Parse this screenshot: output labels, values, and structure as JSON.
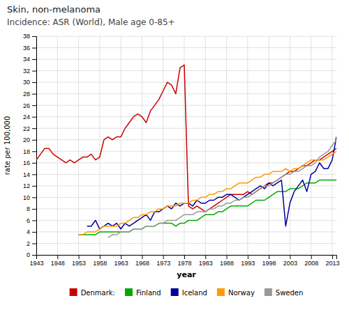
{
  "chart_data": {
    "type": "line",
    "title": "Skin, non-melanoma",
    "subtitle": "Incidence: ASR (World), Male age 0-85+",
    "x_label": "year",
    "y_label": "rate per 100,000",
    "x": [
      1943,
      1944,
      1945,
      1946,
      1947,
      1948,
      1949,
      1950,
      1951,
      1952,
      1953,
      1954,
      1955,
      1956,
      1957,
      1958,
      1959,
      1960,
      1961,
      1962,
      1963,
      1964,
      1965,
      1966,
      1967,
      1968,
      1969,
      1970,
      1971,
      1972,
      1973,
      1974,
      1975,
      1976,
      1977,
      1978,
      1979,
      1980,
      1981,
      1982,
      1983,
      1984,
      1985,
      1986,
      1987,
      1988,
      1989,
      1990,
      1991,
      1992,
      1993,
      1994,
      1995,
      1996,
      1997,
      1998,
      1999,
      2000,
      2001,
      2002,
      2003,
      2004,
      2005,
      2006,
      2007,
      2008,
      2009,
      2010,
      2011,
      2012,
      2013,
      2014
    ],
    "series": [
      {
        "name": "Denmark:",
        "color": "#cc0000",
        "values": [
          16.5,
          17.5,
          18.5,
          18.5,
          17.5,
          17.0,
          16.5,
          16.0,
          16.5,
          16.0,
          16.5,
          17.0,
          17.0,
          17.5,
          16.5,
          17.0,
          20.0,
          20.5,
          20.0,
          20.5,
          20.5,
          22.0,
          23.0,
          24.0,
          24.5,
          24.0,
          23.0,
          25.0,
          26.0,
          27.0,
          28.5,
          30.0,
          29.5,
          28.0,
          32.5,
          33.0,
          8.5,
          8.0,
          8.5,
          8.0,
          7.5,
          8.0,
          8.5,
          9.0,
          9.5,
          10.0,
          10.5,
          10.5,
          10.5,
          10.5,
          11.0,
          10.5,
          11.0,
          11.5,
          12.0,
          12.5,
          12.5,
          13.0,
          13.5,
          14.0,
          14.5,
          14.5,
          15.0,
          15.5,
          15.5,
          16.0,
          16.5,
          16.5,
          17.0,
          17.5,
          18.0,
          18.5
        ]
      },
      {
        "name": "Finland",
        "color": "#00aa00",
        "values": [
          null,
          null,
          null,
          null,
          null,
          null,
          null,
          null,
          null,
          null,
          3.5,
          3.5,
          3.5,
          3.5,
          3.5,
          4.0,
          4.0,
          4.0,
          4.0,
          4.0,
          4.0,
          4.0,
          4.0,
          4.5,
          4.5,
          4.5,
          5.0,
          5.0,
          5.0,
          5.5,
          5.5,
          5.5,
          5.5,
          5.0,
          5.5,
          5.5,
          6.0,
          6.0,
          6.0,
          6.5,
          7.0,
          7.0,
          7.0,
          7.5,
          7.5,
          8.0,
          8.5,
          8.5,
          8.5,
          8.5,
          8.5,
          9.0,
          9.5,
          9.5,
          9.5,
          10.0,
          10.5,
          11.0,
          11.0,
          11.0,
          11.5,
          11.5,
          11.5,
          12.0,
          12.5,
          12.5,
          12.5,
          13.0,
          13.0,
          13.0,
          13.0,
          13.0
        ]
      },
      {
        "name": "Iceland",
        "color": "#000099",
        "values": [
          null,
          null,
          null,
          null,
          null,
          null,
          null,
          null,
          null,
          null,
          null,
          null,
          5.0,
          5.0,
          6.0,
          4.5,
          5.0,
          5.5,
          5.0,
          5.5,
          4.5,
          5.5,
          5.0,
          5.5,
          6.0,
          6.5,
          7.0,
          6.0,
          7.5,
          7.5,
          8.0,
          8.5,
          8.0,
          9.0,
          8.5,
          9.0,
          9.0,
          8.5,
          9.5,
          9.0,
          9.0,
          9.5,
          9.5,
          10.0,
          10.0,
          10.5,
          10.5,
          10.0,
          9.5,
          10.0,
          10.5,
          11.0,
          11.5,
          12.0,
          11.5,
          12.5,
          12.0,
          12.5,
          13.0,
          5.0,
          9.0,
          11.0,
          12.0,
          13.0,
          11.0,
          14.0,
          14.5,
          16.0,
          15.0,
          15.0,
          16.5,
          20.5
        ]
      },
      {
        "name": "Norway",
        "color": "#ff9900",
        "values": [
          null,
          null,
          null,
          null,
          null,
          null,
          null,
          null,
          null,
          null,
          3.5,
          3.5,
          4.0,
          4.0,
          4.0,
          4.5,
          5.0,
          5.0,
          5.0,
          5.0,
          5.5,
          5.5,
          6.0,
          6.5,
          6.5,
          7.0,
          7.0,
          7.5,
          7.5,
          8.0,
          8.0,
          8.5,
          8.5,
          8.5,
          9.0,
          9.0,
          9.0,
          9.5,
          9.5,
          10.0,
          10.0,
          10.5,
          10.5,
          11.0,
          11.0,
          11.5,
          11.5,
          12.0,
          12.5,
          12.5,
          12.5,
          13.0,
          13.5,
          13.5,
          14.0,
          14.0,
          14.5,
          14.5,
          14.5,
          15.0,
          14.5,
          15.0,
          15.0,
          15.5,
          16.0,
          16.5,
          16.5,
          16.5,
          16.5,
          17.0,
          17.5,
          18.0
        ]
      },
      {
        "name": "Sweden",
        "color": "#999999",
        "values": [
          null,
          null,
          null,
          null,
          null,
          null,
          null,
          null,
          null,
          null,
          null,
          null,
          null,
          null,
          null,
          null,
          null,
          3.0,
          3.5,
          3.5,
          4.0,
          4.0,
          4.0,
          4.5,
          4.5,
          4.5,
          5.0,
          5.0,
          5.0,
          5.5,
          5.5,
          6.0,
          6.0,
          6.0,
          6.5,
          7.0,
          7.0,
          7.0,
          7.5,
          7.5,
          7.5,
          8.0,
          8.0,
          8.5,
          8.5,
          9.0,
          9.0,
          9.5,
          9.5,
          10.0,
          10.0,
          10.5,
          11.0,
          11.5,
          12.0,
          12.0,
          12.5,
          13.0,
          13.5,
          14.0,
          14.0,
          14.5,
          14.5,
          15.0,
          15.5,
          15.5,
          16.0,
          17.0,
          17.5,
          18.0,
          19.0,
          20.0
        ]
      }
    ],
    "xlim": [
      1943,
      2014
    ],
    "xticks": [
      1943,
      1948,
      1953,
      1958,
      1963,
      1968,
      1973,
      1978,
      1983,
      1988,
      1993,
      1998,
      2003,
      2008,
      2013
    ],
    "ylim": [
      0,
      38
    ],
    "yticks": [
      0,
      2,
      4,
      6,
      8,
      10,
      12,
      14,
      16,
      18,
      20,
      22,
      24,
      26,
      28,
      30,
      32,
      34,
      36,
      38
    ],
    "grid": true,
    "legend": "bottom"
  }
}
